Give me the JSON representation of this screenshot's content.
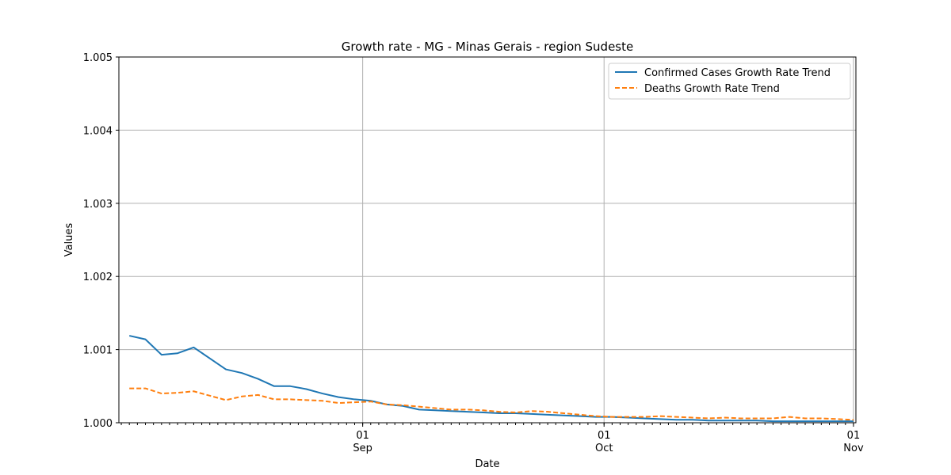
{
  "chart_data": {
    "type": "line",
    "title": "Growth rate - MG - Minas Gerais - region Sudeste",
    "xlabel": "Date",
    "ylabel": "Values",
    "ylim": [
      1.0,
      1.005
    ],
    "xlim": [
      "2020-08-02",
      "2020-11-01"
    ],
    "x": [
      "2020-08-03",
      "2020-08-05",
      "2020-08-07",
      "2020-08-09",
      "2020-08-11",
      "2020-08-13",
      "2020-08-15",
      "2020-08-17",
      "2020-08-19",
      "2020-08-21",
      "2020-08-23",
      "2020-08-25",
      "2020-08-27",
      "2020-08-29",
      "2020-08-31",
      "2020-09-02",
      "2020-09-04",
      "2020-09-06",
      "2020-09-08",
      "2020-09-10",
      "2020-09-12",
      "2020-09-14",
      "2020-09-16",
      "2020-09-18",
      "2020-09-20",
      "2020-09-22",
      "2020-09-24",
      "2020-09-26",
      "2020-09-28",
      "2020-09-30",
      "2020-10-02",
      "2020-10-04",
      "2020-10-06",
      "2020-10-08",
      "2020-10-10",
      "2020-10-12",
      "2020-10-14",
      "2020-10-16",
      "2020-10-18",
      "2020-10-20",
      "2020-10-22",
      "2020-10-24",
      "2020-10-26",
      "2020-10-28",
      "2020-10-30",
      "2020-11-01"
    ],
    "series": [
      {
        "name": "Confirmed Cases Growth Rate Trend",
        "style": "solid",
        "color": "#1f77b4",
        "values": [
          1.00119,
          1.00114,
          1.00093,
          1.00095,
          1.00103,
          1.00088,
          1.00073,
          1.00068,
          1.0006,
          1.0005,
          1.0005,
          1.00046,
          1.0004,
          1.00035,
          1.00032,
          1.0003,
          1.00025,
          1.00023,
          1.00018,
          1.00017,
          1.00016,
          1.00015,
          1.00014,
          1.00013,
          1.00013,
          1.00012,
          1.00011,
          1.0001,
          1.00009,
          1.00008,
          1.00008,
          1.00007,
          1.00006,
          1.00005,
          1.00004,
          1.00004,
          1.00003,
          1.00003,
          1.00003,
          1.00003,
          1.00002,
          1.00002,
          1.00002,
          1.00002,
          1.00002,
          1.00002
        ]
      },
      {
        "name": "Deaths Growth Rate Trend",
        "style": "dashed",
        "color": "#ff7f0e",
        "values": [
          1.00047,
          1.00047,
          1.0004,
          1.00041,
          1.00043,
          1.00037,
          1.00031,
          1.00036,
          1.00038,
          1.00032,
          1.00032,
          1.00031,
          1.0003,
          1.00027,
          1.00028,
          1.00029,
          1.00025,
          1.00024,
          1.00022,
          1.0002,
          1.00018,
          1.00018,
          1.00017,
          1.00015,
          1.00014,
          1.00016,
          1.00015,
          1.00013,
          1.00011,
          1.00009,
          1.00008,
          1.00008,
          1.00008,
          1.00009,
          1.00008,
          1.00007,
          1.00006,
          1.00007,
          1.00006,
          1.00006,
          1.00006,
          1.00008,
          1.00006,
          1.00006,
          1.00005,
          1.00004
        ]
      }
    ],
    "yticks": [
      "1.000",
      "1.001",
      "1.002",
      "1.003",
      "1.004",
      "1.005"
    ],
    "xticks": [
      {
        "date": "2020-09-01",
        "day": "01",
        "month": "Sep"
      },
      {
        "date": "2020-10-01",
        "day": "01",
        "month": "Oct"
      },
      {
        "date": "2020-11-01",
        "day": "01",
        "month": "Nov"
      }
    ],
    "grid": true,
    "legend_position": "top-right"
  }
}
